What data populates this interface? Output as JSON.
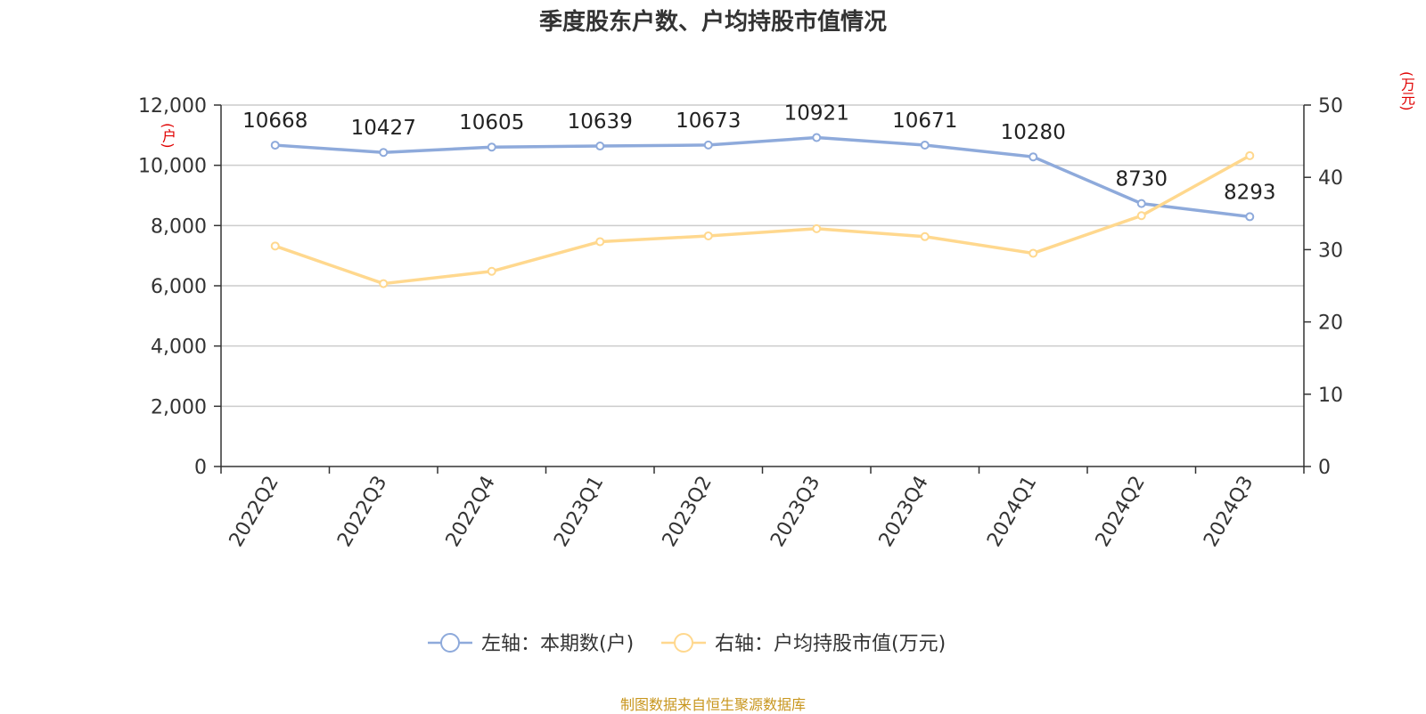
{
  "chart_data": {
    "type": "line",
    "title": "季度股东户数、户均持股市值情况",
    "categories": [
      "2022Q2",
      "2022Q3",
      "2022Q4",
      "2023Q1",
      "2023Q2",
      "2023Q3",
      "2023Q4",
      "2024Q1",
      "2024Q2",
      "2024Q3"
    ],
    "left_axis": {
      "unit": "(户)",
      "ylim": [
        0,
        12000
      ],
      "ticks": [
        "0",
        "2,000",
        "4,000",
        "6,000",
        "8,000",
        "10,000",
        "12,000"
      ]
    },
    "right_axis": {
      "unit": "(万元)",
      "ylim": [
        0,
        50
      ],
      "ticks": [
        "0",
        "10",
        "20",
        "30",
        "40",
        "50"
      ]
    },
    "series": [
      {
        "name": "左轴：本期数(户)",
        "axis": "left",
        "color": "#8eaadb",
        "values": [
          10668,
          10427,
          10605,
          10639,
          10673,
          10921,
          10671,
          10280,
          8730,
          8293
        ],
        "labels": [
          "10668",
          "10427",
          "10605",
          "10639",
          "10673",
          "10921",
          "10671",
          "10280",
          "8730",
          "8293"
        ]
      },
      {
        "name": "右轴：户均持股市值(万元)",
        "axis": "right",
        "color": "#ffd88e",
        "values": [
          30.5,
          25.3,
          27.0,
          31.1,
          31.9,
          32.9,
          31.8,
          29.5,
          34.7,
          43.0
        ]
      }
    ],
    "grid": true,
    "legend": "bottom",
    "source": "制图数据来自恒生聚源数据库"
  }
}
